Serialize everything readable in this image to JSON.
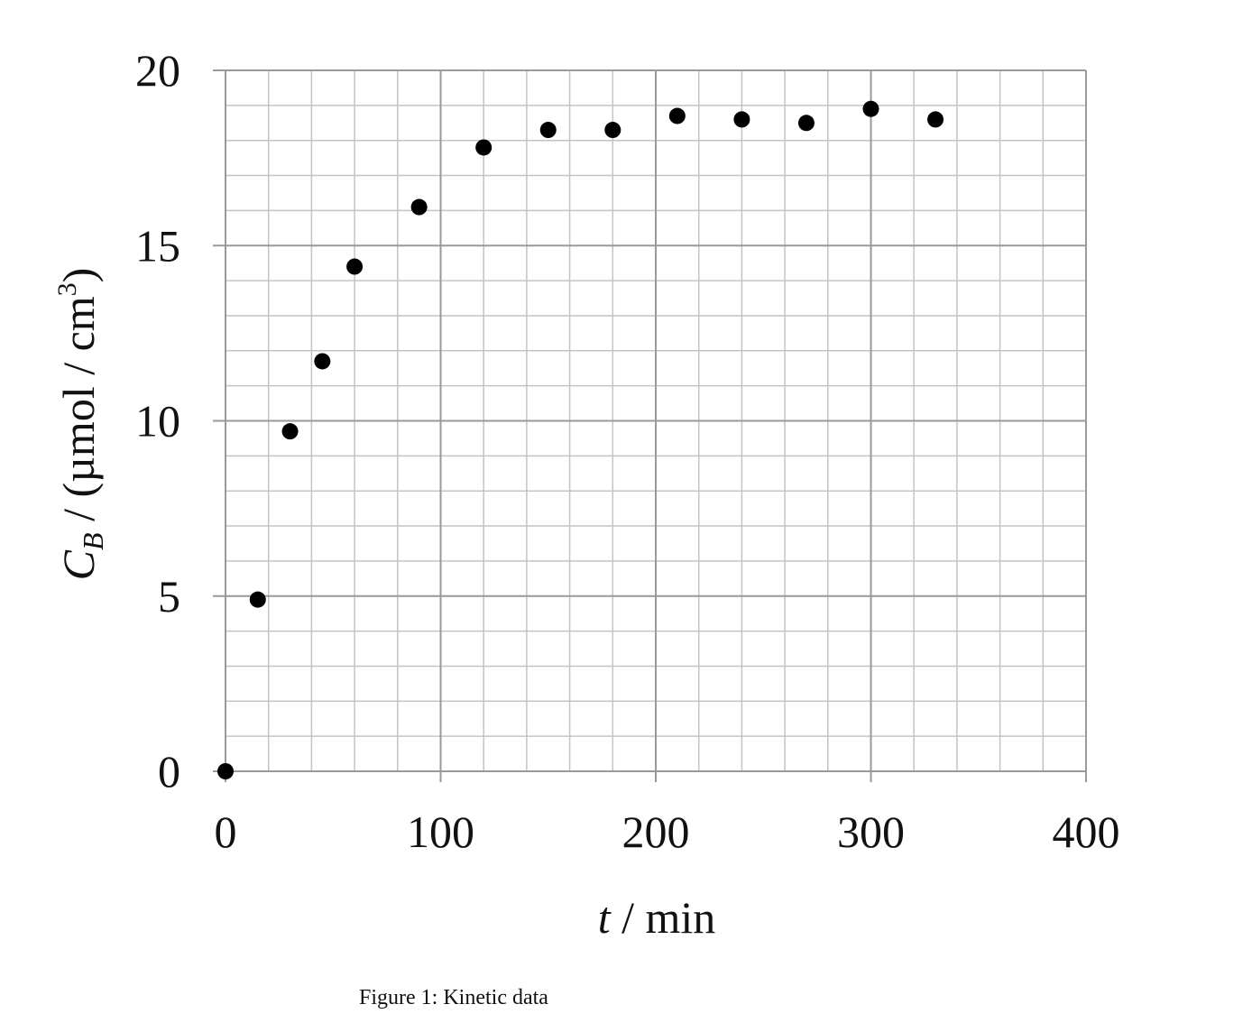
{
  "chart_data": {
    "type": "scatter",
    "x": [
      0,
      15,
      30,
      45,
      60,
      90,
      120,
      150,
      180,
      210,
      240,
      270,
      300,
      330
    ],
    "values": [
      0,
      4.9,
      9.7,
      11.7,
      14.4,
      16.1,
      17.8,
      18.3,
      18.3,
      18.7,
      18.6,
      18.5,
      18.9,
      18.6
    ],
    "color": "#000000",
    "xlim": [
      0,
      400
    ],
    "ylim": [
      0,
      20
    ],
    "xticks": [
      0,
      100,
      200,
      300,
      400
    ],
    "yticks": [
      0,
      5,
      10,
      15,
      20
    ],
    "grid": true,
    "minor_grid": {
      "x": 20,
      "y": 1
    },
    "xlabel_parts": [
      "t",
      " / min"
    ],
    "ylabel_parts": [
      "C",
      "B",
      "  / (µmol / cm",
      "3",
      ")"
    ],
    "caption": "Figure 1: Kinetic data"
  }
}
